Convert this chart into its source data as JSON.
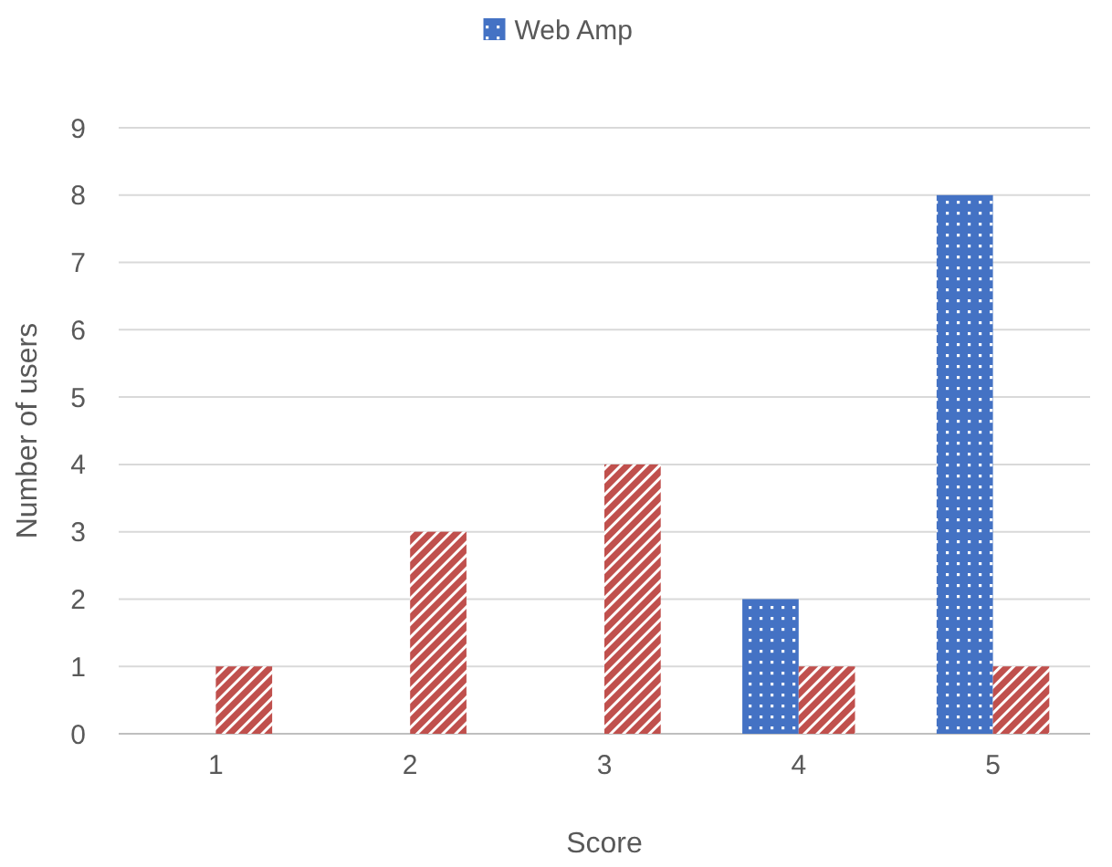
{
  "chart_data": {
    "type": "bar",
    "xlabel": "Score",
    "ylabel": "Number of users",
    "categories": [
      "1",
      "2",
      "3",
      "4",
      "5"
    ],
    "series": [
      {
        "name": "Web Amp",
        "color": "#4472c4",
        "values": [
          0,
          0,
          0,
          2,
          8
        ]
      },
      {
        "color": "#c0504d",
        "values": [
          1,
          3,
          4,
          1,
          1
        ]
      }
    ],
    "ylim": [
      0,
      9
    ],
    "yticks": [
      0,
      1,
      2,
      3,
      4,
      5,
      6,
      7,
      8,
      9
    ],
    "grid": "y",
    "legend": "top"
  }
}
